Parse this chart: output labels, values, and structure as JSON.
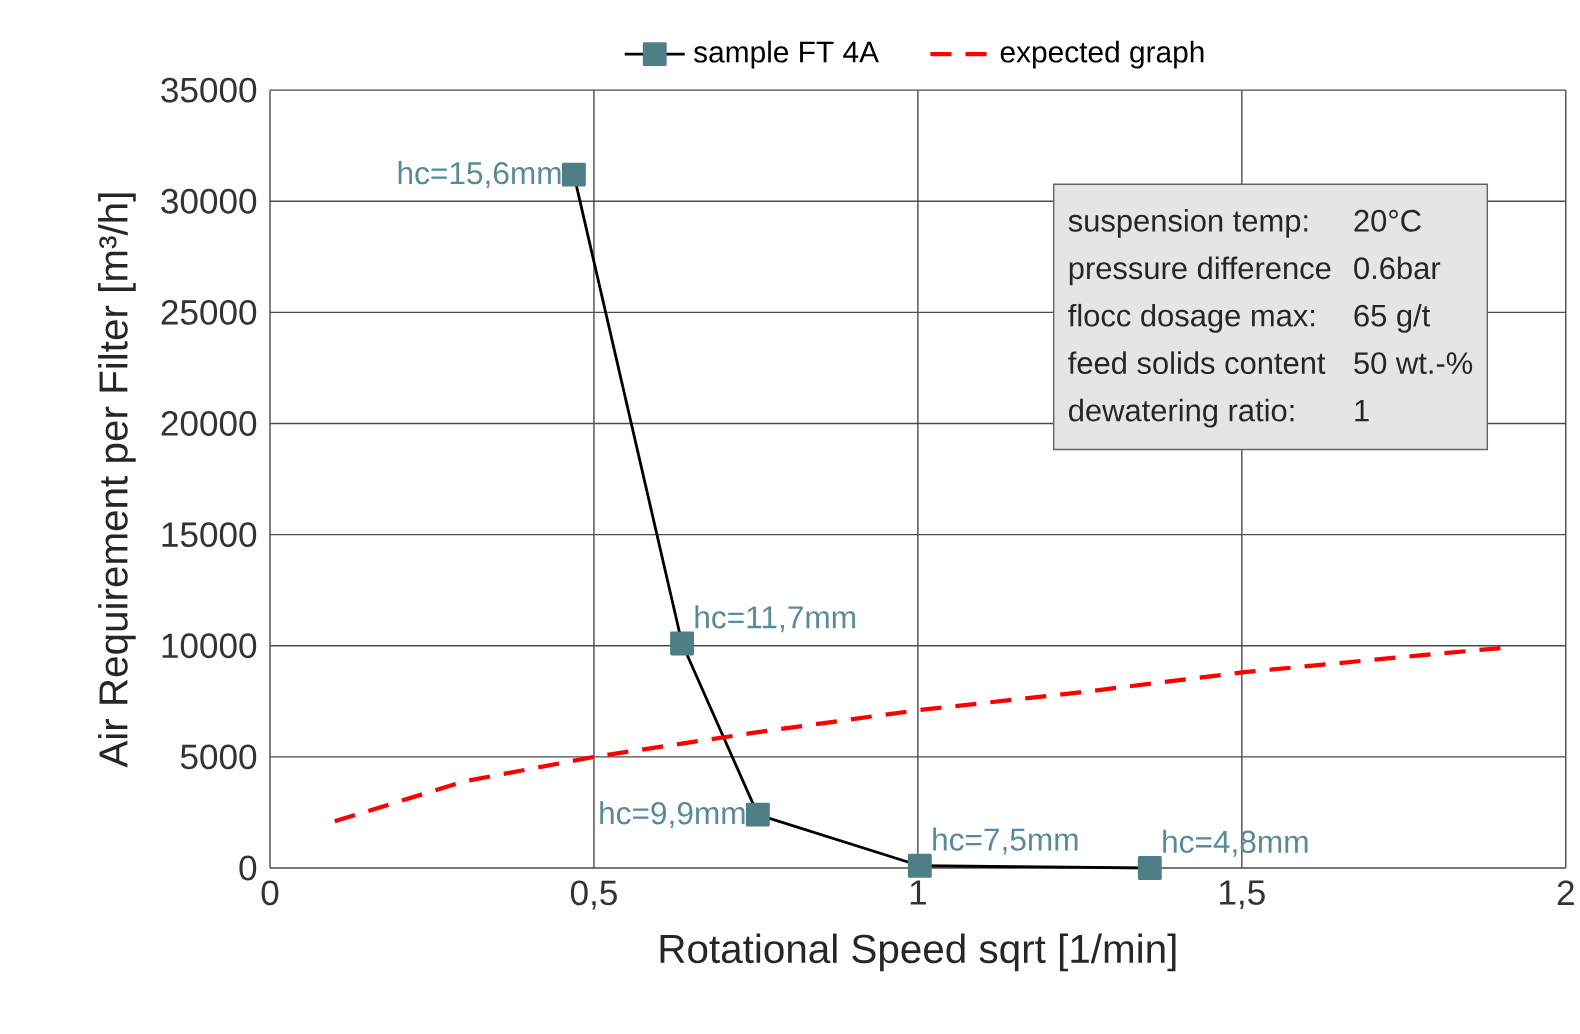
{
  "chart_data": {
    "type": "line",
    "xlabel": "Rotational Speed sqrt [1/min]",
    "ylabel": "Air Requirement per Filter [m³/h]",
    "xlim": [
      0,
      2
    ],
    "ylim": [
      0,
      35000
    ],
    "xticks": [
      0,
      {
        "value": 0.5,
        "label": "0,5"
      },
      1,
      {
        "value": 1.5,
        "label": "1,5"
      },
      2
    ],
    "yticks": [
      0,
      5000,
      10000,
      15000,
      20000,
      25000,
      30000,
      35000
    ],
    "grid": true,
    "legend": "top",
    "series": [
      {
        "name": "sample FT 4A",
        "color": "#4d7f85",
        "marker": "square",
        "line_style": "solid",
        "x": [
          0.469,
          0.636,
          0.753,
          1.003,
          1.358
        ],
        "values": [
          31200,
          10100,
          2400,
          100,
          0
        ]
      },
      {
        "name": "expected graph",
        "color": "#ff0000",
        "marker": "none",
        "line_style": "dashed",
        "x": [
          0.1,
          0.2,
          0.3,
          0.5,
          0.75,
          1.0,
          1.25,
          1.5,
          1.75,
          1.9
        ],
        "values": [
          2100,
          3000,
          3900,
          5000,
          6100,
          7100,
          7900,
          8800,
          9500,
          9900
        ]
      }
    ],
    "annotations": [
      {
        "text": "hc=15,6mm",
        "x": 0.469,
        "y": 31200
      },
      {
        "text": "hc=11,7mm",
        "x": 0.636,
        "y": 10100
      },
      {
        "text": "hc=9,9mm",
        "x": 0.753,
        "y": 2400
      },
      {
        "text": "hc=7,5mm",
        "x": 1.003,
        "y": 100
      },
      {
        "text": "hc=4,8mm",
        "x": 1.358,
        "y": 0
      },
      "suspension temp:",
      "20°C",
      "pressure difference",
      "0.6bar",
      "flocc dosage max:",
      "65 g/t",
      "feed solids content",
      "50 wt.-%",
      "dewatering ratio:",
      "1"
    ]
  }
}
